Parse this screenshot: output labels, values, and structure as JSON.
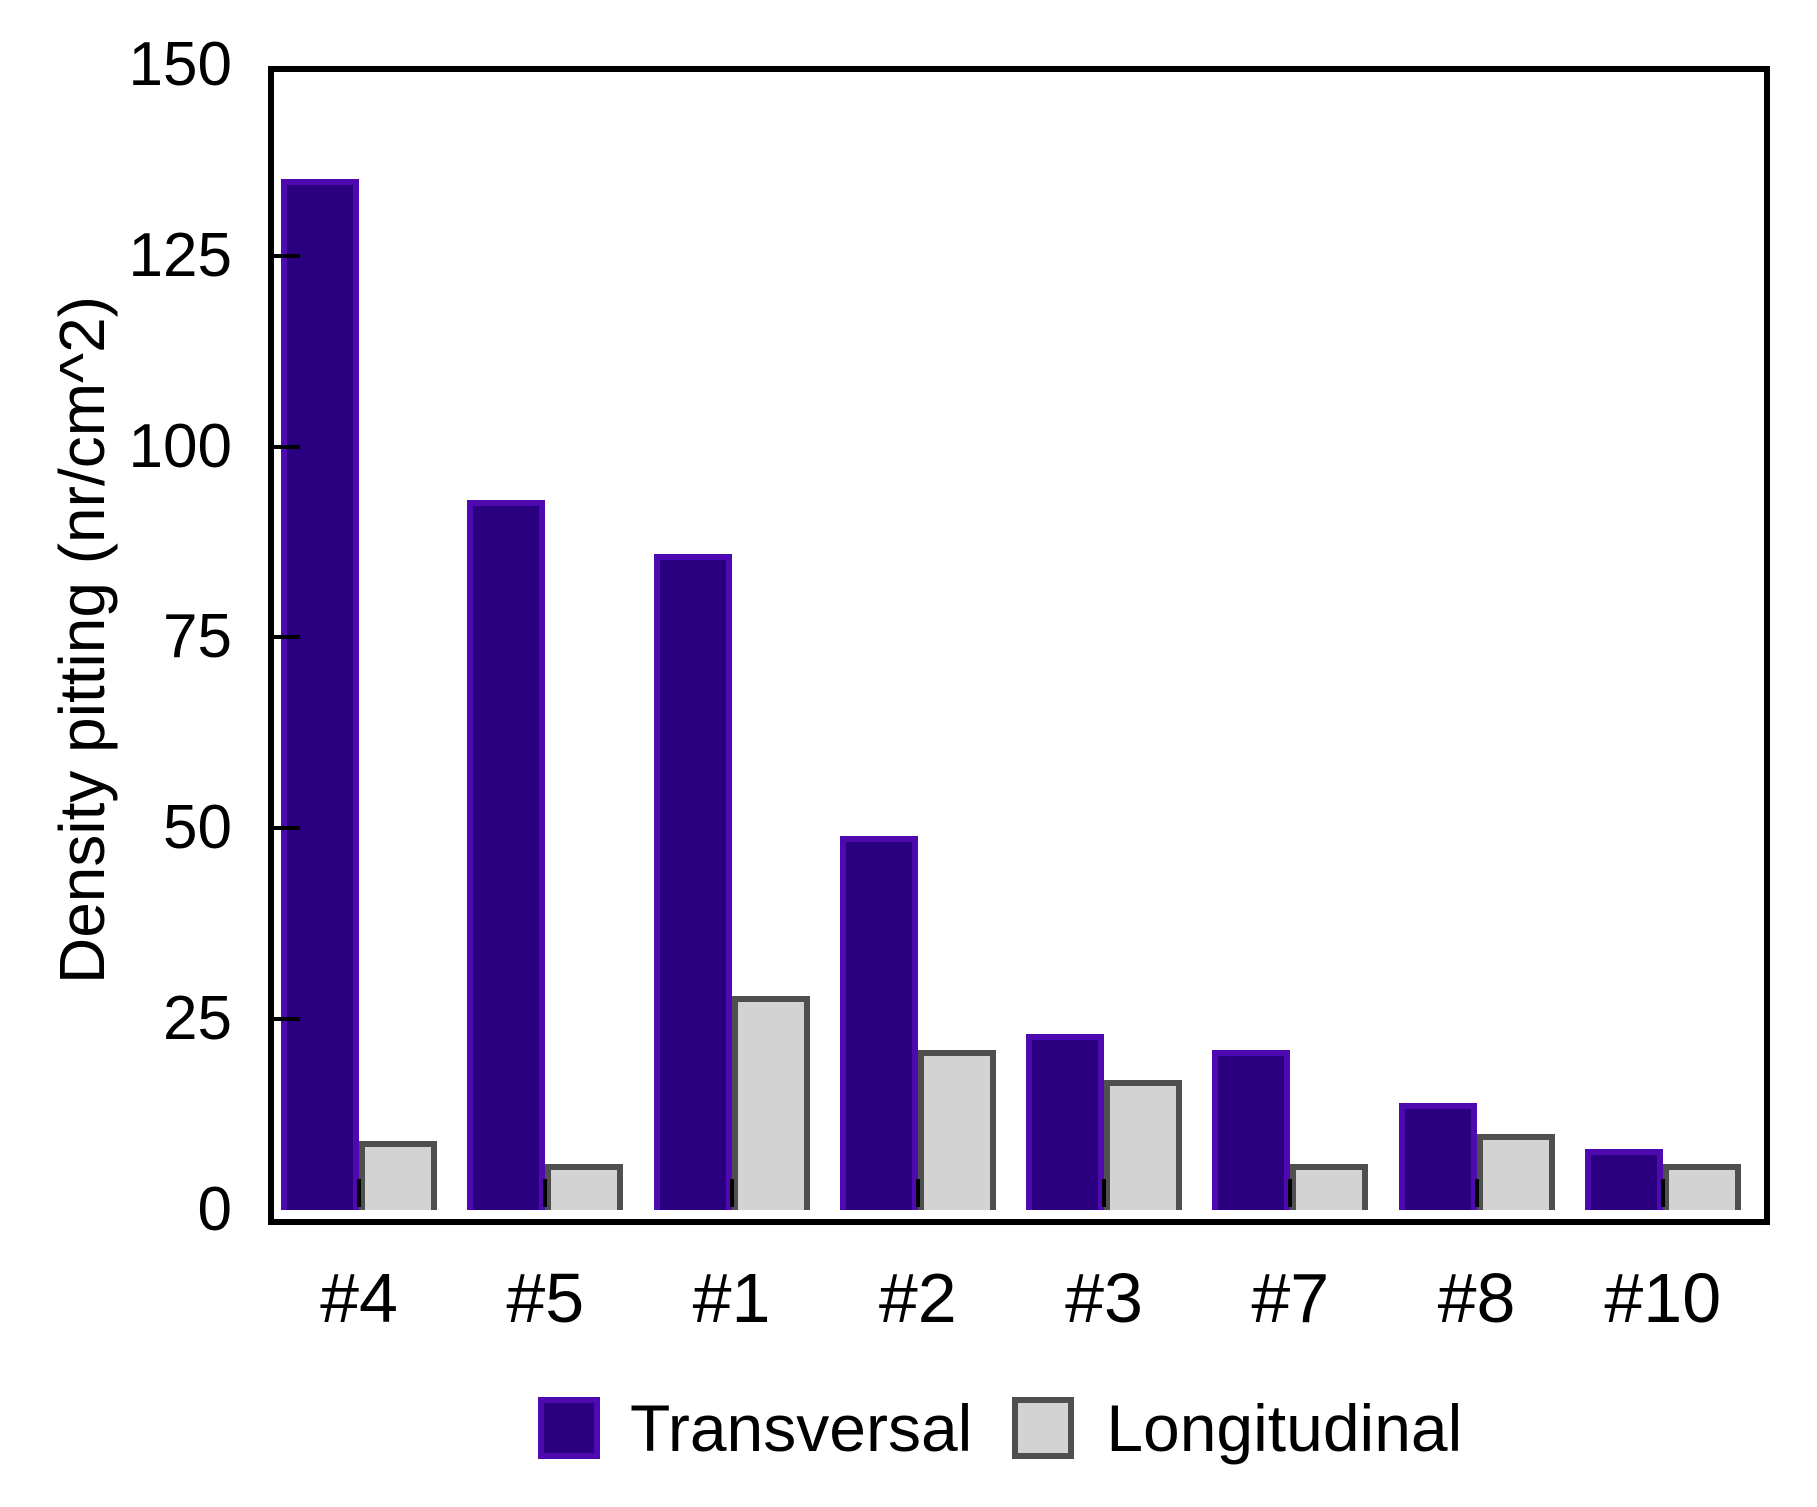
{
  "chart_data": {
    "type": "bar",
    "title": "",
    "xlabel": "",
    "ylabel": "Density pitting (nr/cm^2)",
    "categories": [
      "#4",
      "#5",
      "#1",
      "#2",
      "#3",
      "#7",
      "#8",
      "#10"
    ],
    "series": [
      {
        "name": "Transversal",
        "fill_color": "#2A0080",
        "border_color": "#4E09B0",
        "values": [
          135,
          93,
          86,
          49,
          23,
          21,
          14,
          8
        ]
      },
      {
        "name": "Longitudinal",
        "fill_color": "#D3D3D3",
        "border_color": "#4F4F4F",
        "values": [
          9,
          6,
          28,
          21,
          17,
          6,
          10,
          6
        ]
      }
    ],
    "ylim": [
      0,
      150
    ],
    "yticks": [
      0,
      25,
      50,
      75,
      100,
      125,
      150
    ],
    "grid": false,
    "legend_position": "bottom",
    "axis_color": "#000000",
    "background_color": "#FFFFFF"
  }
}
